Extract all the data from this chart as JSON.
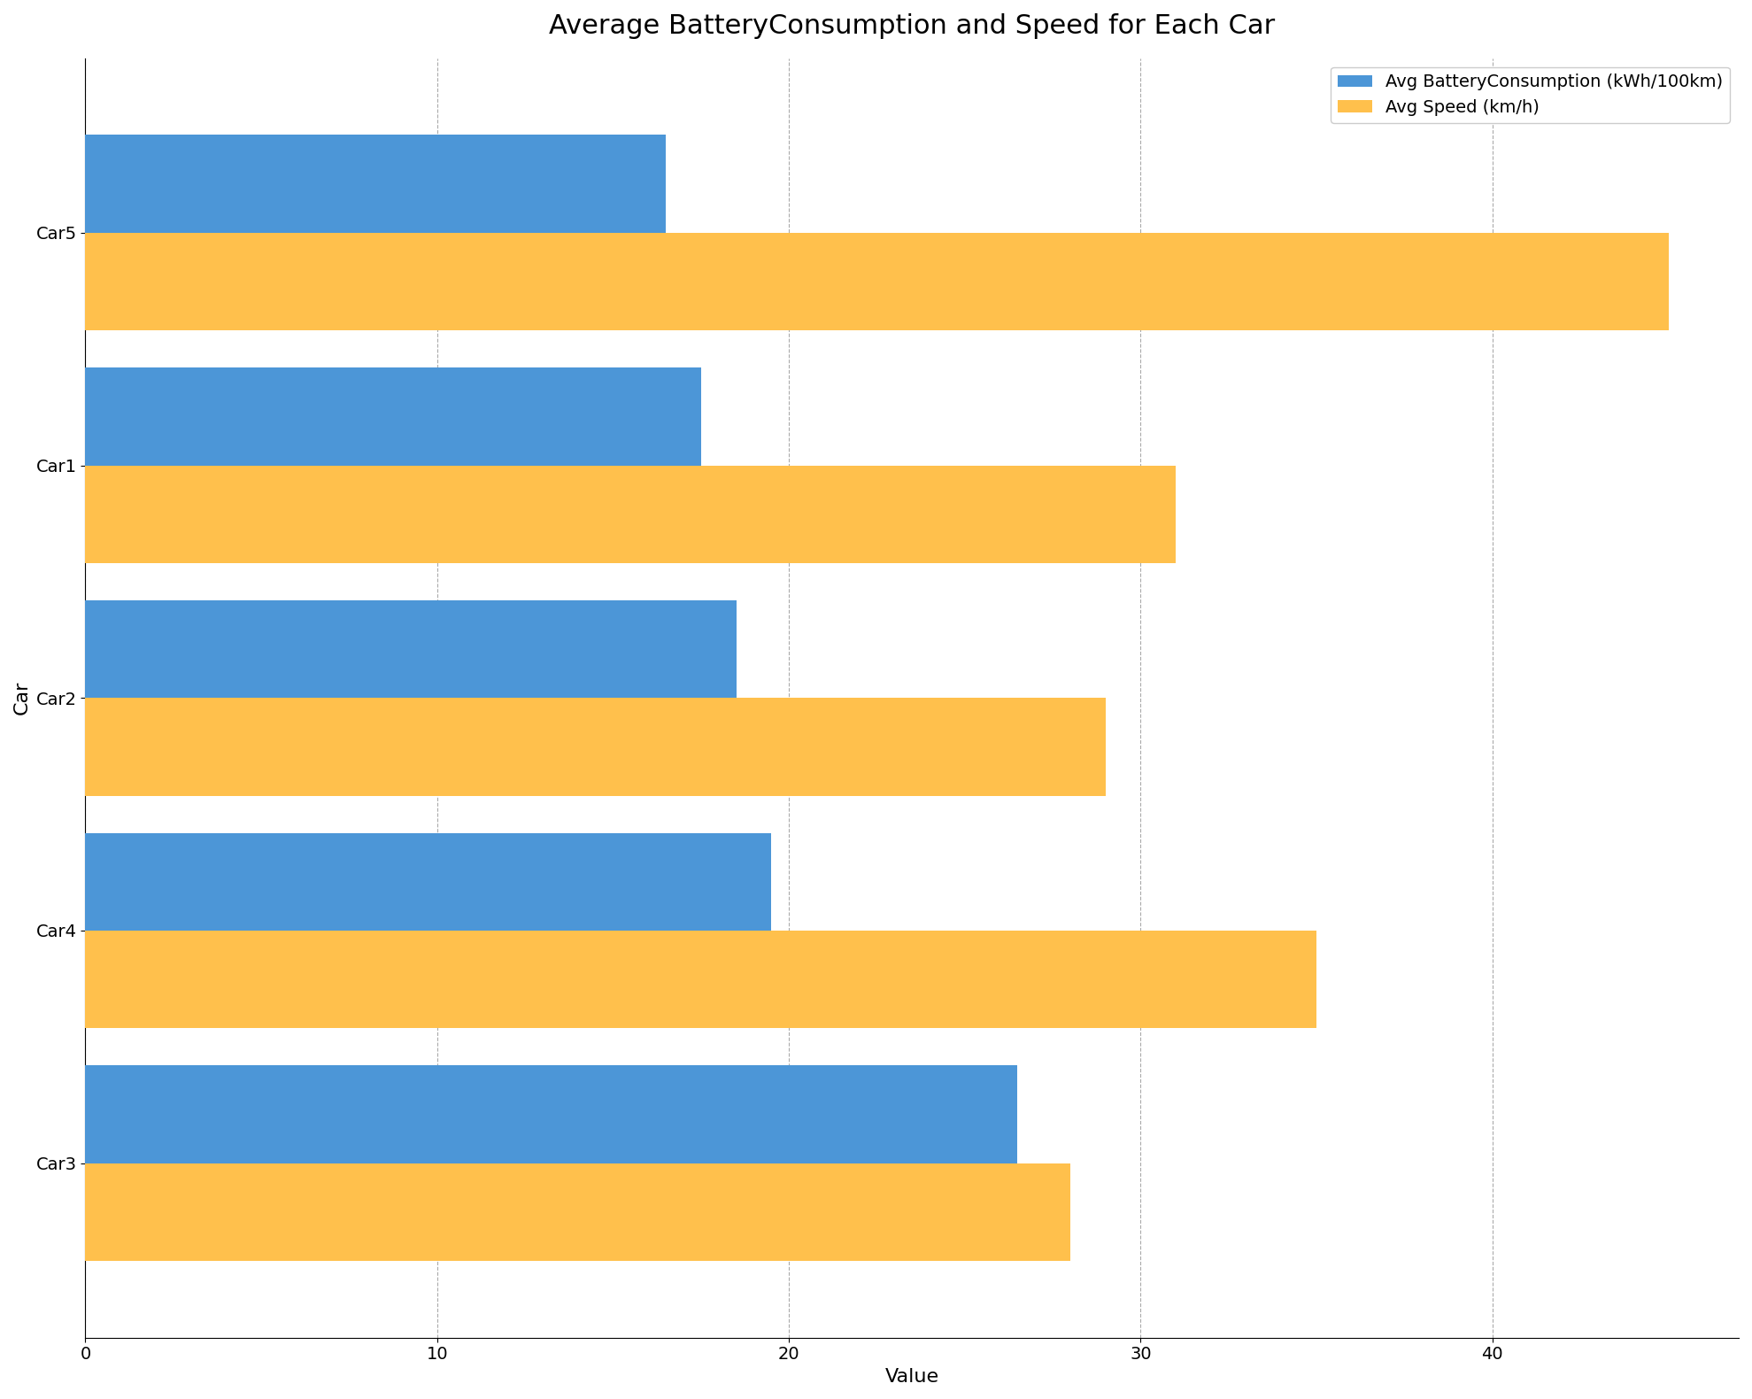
{
  "cars": [
    "Car3",
    "Car4",
    "Car2",
    "Car1",
    "Car5"
  ],
  "battery_consumption": [
    26.5,
    19.5,
    18.5,
    17.5,
    16.5
  ],
  "speed": [
    28.0,
    35.0,
    29.0,
    31.0,
    45.0
  ],
  "battery_color": "#4C96D7",
  "speed_color": "#FFC04C",
  "title": "Average BatteryConsumption and Speed for Each Car",
  "xlabel": "Value",
  "ylabel": "Car",
  "legend_labels": [
    "Avg BatteryConsumption (kWh/100km)",
    "Avg Speed (km/h)"
  ],
  "xlim": [
    0,
    47
  ],
  "title_fontsize": 22,
  "axis_label_fontsize": 16,
  "tick_fontsize": 14,
  "legend_fontsize": 14,
  "bar_height": 0.42,
  "background_color": "#ffffff",
  "spine_color": "#333333",
  "grid_color": "#aaaaaa"
}
